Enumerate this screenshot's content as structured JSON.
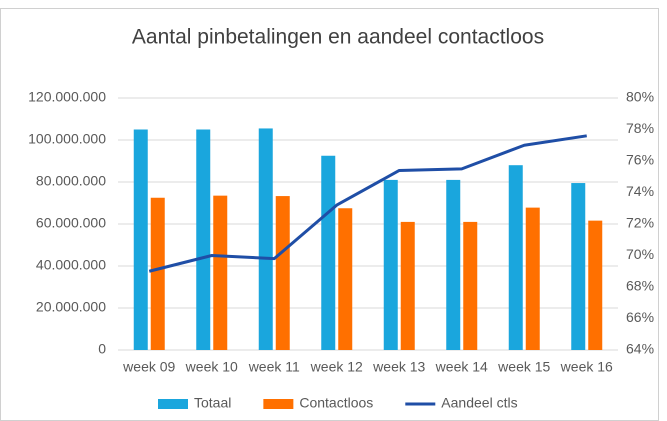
{
  "chart_data": {
    "type": "bar_line",
    "title": "Aantal pinbetalingen en aandeel contactloos",
    "categories": [
      "week 09",
      "week 10",
      "week 11",
      "week 12",
      "week 13",
      "week 14",
      "week 15",
      "week 16"
    ],
    "series": [
      {
        "name": "Totaal",
        "color": "#1aa6dd",
        "values": [
          105000000,
          105000000,
          105500000,
          92500000,
          81000000,
          81000000,
          88000000,
          79500000
        ]
      },
      {
        "name": "Contactloos",
        "color": "#ff7000",
        "values": [
          72500000,
          73500000,
          73300000,
          67500000,
          61000000,
          61000000,
          67800000,
          61600000
        ]
      },
      {
        "name": "Aandeel ctls",
        "color": "#1f4ea6",
        "axis": "y2",
        "values": [
          69.0,
          70.0,
          69.8,
          73.2,
          75.4,
          75.5,
          77.0,
          77.6
        ]
      }
    ],
    "ylim": [
      0,
      120000000
    ],
    "yticks": [
      0,
      {
        "value": 20000000,
        "label": "20.000.000"
      },
      {
        "value": 40000000,
        "label": "40.000.000"
      },
      {
        "value": 60000000,
        "label": "60.000.000"
      },
      {
        "value": 80000000,
        "label": "80.000.000"
      },
      {
        "value": 100000000,
        "label": "100.000.000"
      },
      {
        "value": 120000000,
        "label": "120.000.000"
      }
    ],
    "y2lim": [
      64,
      80
    ],
    "y2ticks": [
      {
        "value": 64,
        "label": "64%"
      },
      {
        "value": 66,
        "label": "66%"
      },
      {
        "value": 68,
        "label": "68%"
      },
      {
        "value": 70,
        "label": "70%"
      },
      {
        "value": 72,
        "label": "72%"
      },
      {
        "value": 74,
        "label": "74%"
      },
      {
        "value": 76,
        "label": "76%"
      },
      {
        "value": 78,
        "label": "78%"
      },
      {
        "value": 80,
        "label": "80%"
      }
    ],
    "grid": true,
    "legend": "bottom"
  }
}
